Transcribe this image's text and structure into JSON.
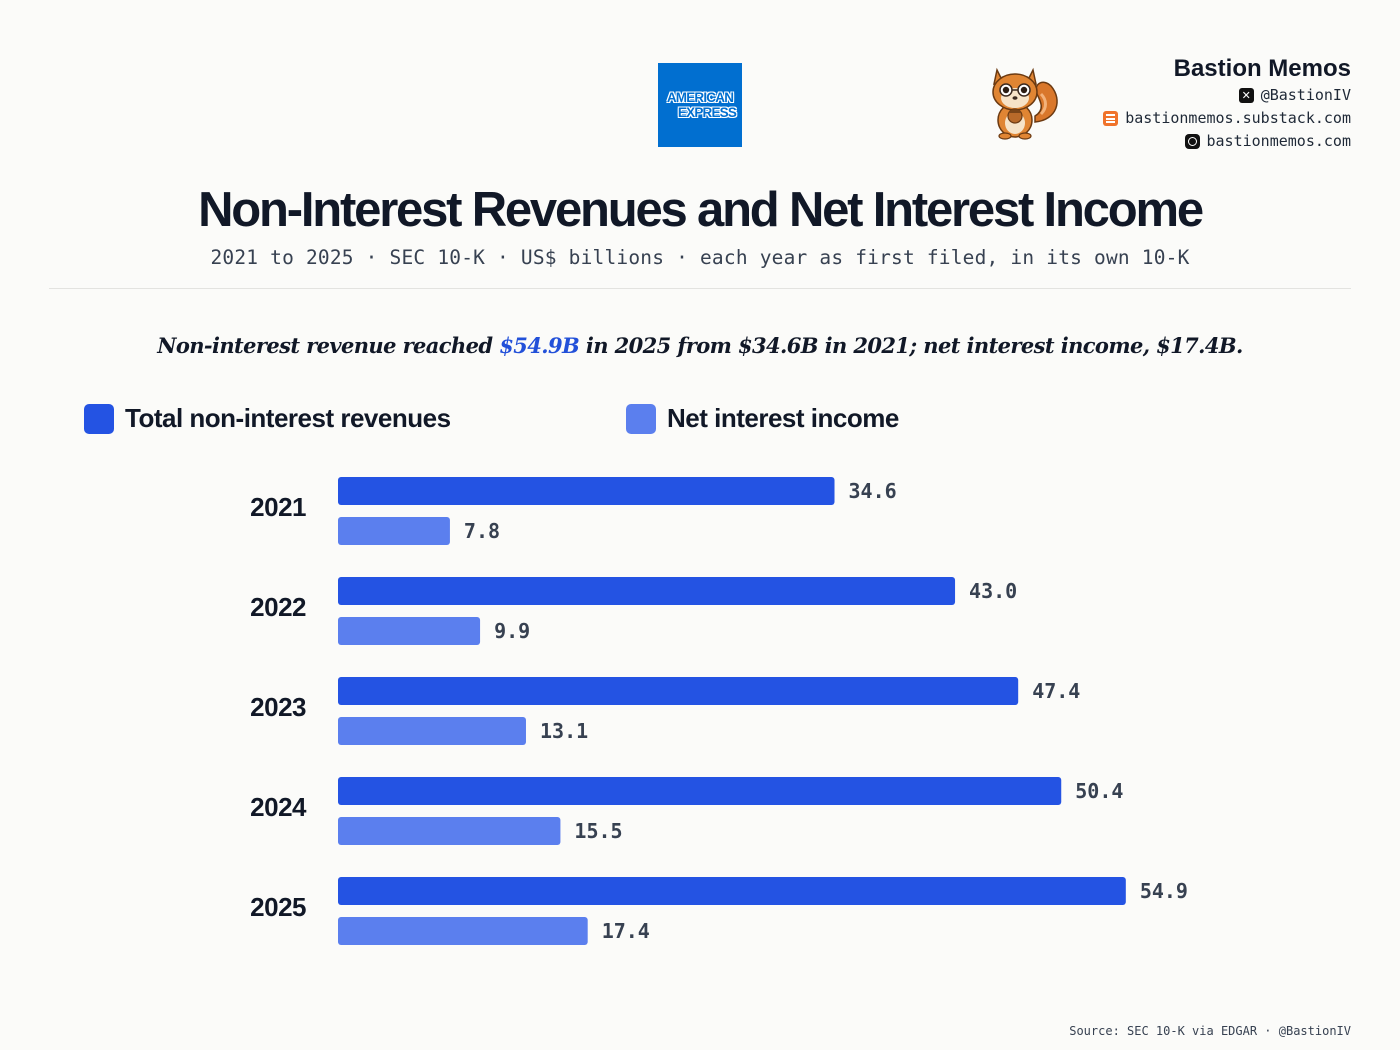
{
  "header": {
    "logo": {
      "line1": "AMERICAN",
      "line2": "EXPRESS",
      "color": "#016fd0"
    },
    "brand": {
      "name": "Bastion Memos",
      "handle": "@BastionIV",
      "substack": "bastionmemos.substack.com",
      "website": "bastionmemos.com"
    }
  },
  "title": "Non-Interest Revenues and Net Interest Income",
  "subtitle": "2021 to 2025 · SEC 10-K · US$ billions · each year as first filed, in its own 10-K",
  "headline": {
    "part1": "Non-interest revenue reached ",
    "highlight": "$54.9B",
    "part2": " in 2025 from $34.6B in 2021; net interest income, $17.4B."
  },
  "legend": [
    {
      "label": "Total non-interest revenues",
      "color": "#2453e3"
    },
    {
      "label": "Net interest income",
      "color": "#5b7fee"
    }
  ],
  "chart_data": {
    "type": "bar",
    "orientation": "horizontal",
    "categories": [
      "2021",
      "2022",
      "2023",
      "2024",
      "2025"
    ],
    "series": [
      {
        "name": "Total non-interest revenues",
        "values": [
          34.6,
          43.0,
          47.4,
          50.4,
          54.9
        ],
        "color": "#2453e3"
      },
      {
        "name": "Net interest income",
        "values": [
          7.8,
          9.9,
          13.1,
          15.5,
          17.4
        ],
        "color": "#5b7fee"
      }
    ],
    "value_labels": [
      [
        "34.6",
        "43.0",
        "47.4",
        "50.4",
        "54.9"
      ],
      [
        "7.8",
        "9.9",
        "13.1",
        "15.5",
        "17.4"
      ]
    ],
    "xlim": [
      0,
      55
    ],
    "unit": "US$ billions",
    "grid": false,
    "legend_position": "top-left"
  },
  "source": "Source: SEC 10-K via EDGAR · @BastionIV"
}
